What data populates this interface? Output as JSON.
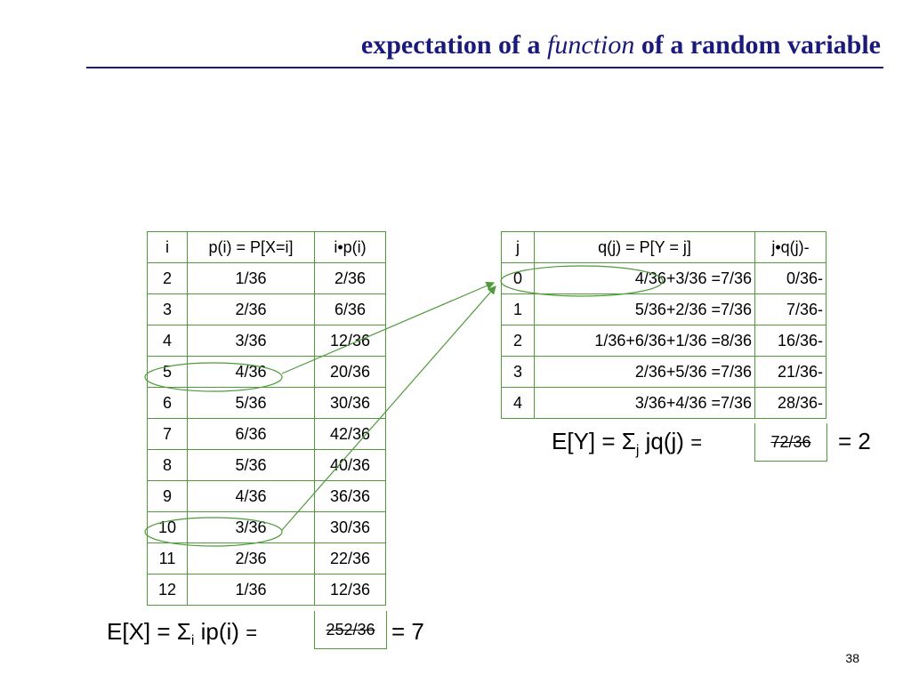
{
  "title": {
    "before": "expectation of a",
    "italic": "function",
    "after": "of a random variable"
  },
  "table_x": {
    "header": [
      "i",
      "p(i) = P[X=i]",
      "i•p(i)"
    ],
    "rows": [
      [
        "2",
        "1/36",
        "2/36"
      ],
      [
        "3",
        "2/36",
        "6/36"
      ],
      [
        "4",
        "3/36",
        "12/36"
      ],
      [
        "5",
        "4/36",
        "20/36"
      ],
      [
        "6",
        "5/36",
        "30/36"
      ],
      [
        "7",
        "6/36",
        "42/36"
      ],
      [
        "8",
        "5/36",
        "40/36"
      ],
      [
        "9",
        "4/36",
        "36/36"
      ],
      [
        "10",
        "3/36",
        "30/36"
      ],
      [
        "11",
        "2/36",
        "22/36"
      ],
      [
        "12",
        "1/36",
        "12/36"
      ]
    ],
    "total": "252/36"
  },
  "table_y": {
    "header": [
      "j",
      "q(j) = P[Y = j]",
      "j•q(j)-"
    ],
    "rows": [
      [
        "0",
        "4/36+3/36 =7/36",
        "0/36-"
      ],
      [
        "1",
        "5/36+2/36 =7/36",
        "7/36-"
      ],
      [
        "2",
        "1/36+6/36+1/36 =8/36",
        "16/36-"
      ],
      [
        "3",
        "2/36+5/36 =7/36",
        "21/36-"
      ],
      [
        "4",
        "3/36+4/36 =7/36",
        "28/36-"
      ]
    ],
    "total": "72/36"
  },
  "ex": {
    "lead": "E[X] = Σ",
    "sub": "i",
    "rest": " ip(i)",
    "eq": "=",
    "result": "= 7"
  },
  "ey": {
    "lead": "E[Y] = Σ",
    "sub": "j",
    "rest": " jq(j)",
    "eq": "=",
    "result": "= 2"
  },
  "page_number": "38"
}
